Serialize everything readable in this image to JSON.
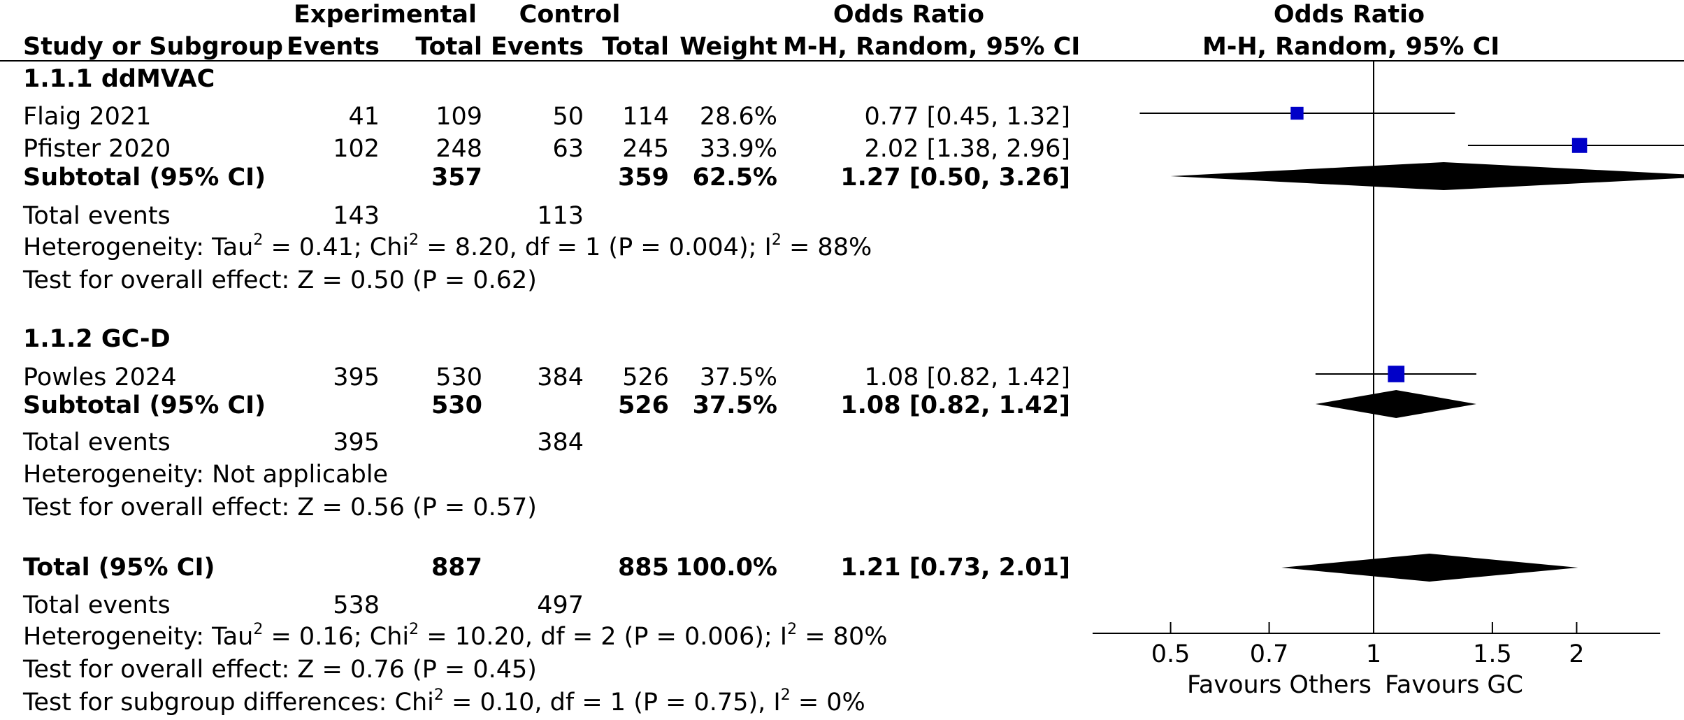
{
  "header": {
    "experimental": "Experimental",
    "control": "Control",
    "or_title": "Odds Ratio",
    "study_col": "Study or Subgroup",
    "events": "Events",
    "total": "Total",
    "weight": "Weight",
    "method": "M-H, Random, 95% CI",
    "plot_title": "Odds Ratio",
    "plot_method": "M-H, Random, 95% CI"
  },
  "subgroups": [
    {
      "title": "1.1.1 ddMVAC",
      "studies": [
        {
          "name": "Flaig 2021",
          "e_events": "41",
          "e_total": "109",
          "c_events": "50",
          "c_total": "114",
          "weight": "28.6%",
          "ci": "0.77 [0.45, 1.32]"
        },
        {
          "name": "Pfister 2020",
          "e_events": "102",
          "e_total": "248",
          "c_events": "63",
          "c_total": "245",
          "weight": "33.9%",
          "ci": "2.02 [1.38, 2.96]"
        }
      ],
      "subtotal": {
        "label": "Subtotal (95% CI)",
        "e_total": "357",
        "c_total": "359",
        "weight": "62.5%",
        "ci": "1.27 [0.50, 3.26]"
      },
      "total_events": {
        "label": "Total events",
        "e": "143",
        "c": "113"
      },
      "heterogeneity": "Heterogeneity: Tau² = 0.41; Chi² = 8.20, df = 1 (P = 0.004); I² = 88%",
      "overall": "Test for overall effect: Z = 0.50 (P = 0.62)"
    },
    {
      "title": "1.1.2 GC-D",
      "studies": [
        {
          "name": "Powles 2024",
          "e_events": "395",
          "e_total": "530",
          "c_events": "384",
          "c_total": "526",
          "weight": "37.5%",
          "ci": "1.08 [0.82, 1.42]"
        }
      ],
      "subtotal": {
        "label": "Subtotal (95% CI)",
        "e_total": "530",
        "c_total": "526",
        "weight": "37.5%",
        "ci": "1.08 [0.82, 1.42]"
      },
      "total_events": {
        "label": "Total events",
        "e": "395",
        "c": "384"
      },
      "heterogeneity": "Heterogeneity: Not applicable",
      "overall": "Test for overall effect: Z = 0.56 (P = 0.57)"
    }
  ],
  "total": {
    "label": "Total (95% CI)",
    "e_total": "887",
    "c_total": "885",
    "weight": "100.0%",
    "ci": "1.21 [0.73, 2.01]",
    "total_events": {
      "label": "Total events",
      "e": "538",
      "c": "497"
    },
    "heterogeneity": "Heterogeneity: Tau² = 0.16; Chi² = 10.20, df = 2 (P = 0.006); I² = 80%",
    "overall": "Test for overall effect: Z = 0.76 (P = 0.45)",
    "subgroup_diff": "Test for subgroup differences: Chi² = 0.10, df = 1 (P = 0.75), I² = 0%"
  },
  "axis": {
    "ticks": [
      "0.5",
      "0.7",
      "1",
      "1.5",
      "2"
    ],
    "favours_left": "Favours Others",
    "favours_right": "Favours GC"
  },
  "colors": {
    "square": "#0000c8",
    "diamond": "#000000"
  },
  "chart_data": {
    "type": "forest",
    "x_scale": "log",
    "xlim": [
      0.3,
      3.4
    ],
    "x_ticks": [
      0.5,
      0.7,
      1,
      1.5,
      2
    ],
    "null_line": 1,
    "studies": [
      {
        "name": "Flaig 2021",
        "or": 0.77,
        "lo": 0.45,
        "hi": 1.32,
        "weight": 28.6
      },
      {
        "name": "Pfister 2020",
        "or": 2.02,
        "lo": 1.38,
        "hi": 2.96,
        "weight": 33.9
      },
      {
        "name": "Powles 2024",
        "or": 1.08,
        "lo": 0.82,
        "hi": 1.42,
        "weight": 37.5
      }
    ],
    "diamonds": [
      {
        "name": "Subtotal 1.1.1 ddMVAC",
        "or": 1.27,
        "lo": 0.5,
        "hi": 3.26
      },
      {
        "name": "Subtotal 1.1.2 GC-D",
        "or": 1.08,
        "lo": 0.82,
        "hi": 1.42
      },
      {
        "name": "Total",
        "or": 1.21,
        "lo": 0.73,
        "hi": 2.01
      }
    ]
  }
}
